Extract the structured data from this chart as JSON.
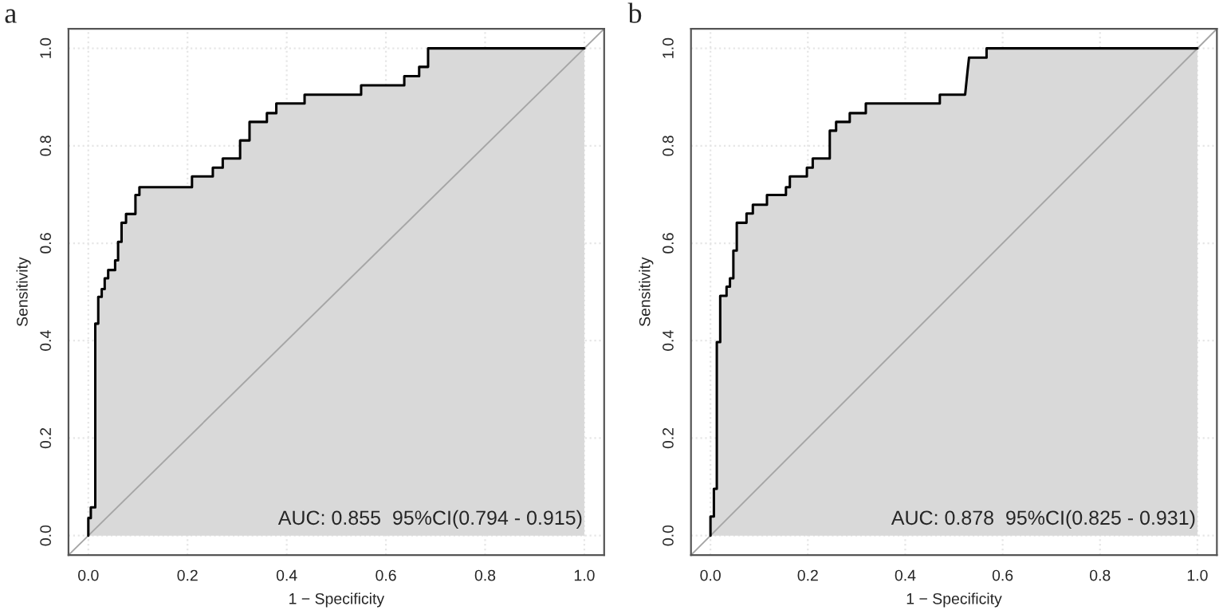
{
  "chart_data": [
    {
      "type": "line",
      "title": "a",
      "xlabel": "1 − Specificity",
      "ylabel": "Sensitivity",
      "xlim": [
        -0.04,
        1.04
      ],
      "ylim": [
        -0.04,
        1.04
      ],
      "xticks": [
        {
          "value": 0,
          "label": "0.0"
        },
        {
          "value": 0.2,
          "label": "0.2"
        },
        {
          "value": 0.4,
          "label": "0.4"
        },
        {
          "value": 0.6,
          "label": "0.6"
        },
        {
          "value": 0.8,
          "label": "0.8"
        },
        {
          "value": 1,
          "label": "1.0"
        }
      ],
      "yticks": [
        {
          "value": 0,
          "label": "0.0"
        },
        {
          "value": 0.2,
          "label": "0.2"
        },
        {
          "value": 0.4,
          "label": "0.4"
        },
        {
          "value": 0.6,
          "label": "0.6"
        },
        {
          "value": 0.8,
          "label": "0.8"
        },
        {
          "value": 1,
          "label": "1.0"
        }
      ],
      "grid": true,
      "annotations": [
        "AUC: 0.855  95%CI(0.794 - 0.915)"
      ],
      "series": [
        {
          "color": "#000000",
          "x": [
            0,
            0,
            0.005,
            0.005,
            0.014,
            0.014,
            0.02,
            0.02,
            0.027,
            0.027,
            0.033,
            0.033,
            0.04,
            0.04,
            0.054,
            0.054,
            0.06,
            0.06,
            0.067,
            0.067,
            0.076,
            0.076,
            0.095,
            0.095,
            0.103,
            0.103,
            0.209,
            0.209,
            0.251,
            0.251,
            0.271,
            0.271,
            0.306,
            0.306,
            0.325,
            0.325,
            0.36,
            0.36,
            0.379,
            0.379,
            0.436,
            0.436,
            0.55,
            0.55,
            0.637,
            0.637,
            0.667,
            0.667,
            0.685,
            0.685,
            1
          ],
          "values": [
            0,
            0.036,
            0.036,
            0.058,
            0.058,
            0.435,
            0.435,
            0.49,
            0.49,
            0.506,
            0.506,
            0.528,
            0.528,
            0.545,
            0.545,
            0.565,
            0.565,
            0.603,
            0.603,
            0.642,
            0.642,
            0.66,
            0.66,
            0.699,
            0.699,
            0.715,
            0.715,
            0.737,
            0.737,
            0.755,
            0.755,
            0.774,
            0.774,
            0.811,
            0.811,
            0.849,
            0.849,
            0.867,
            0.867,
            0.887,
            0.887,
            0.905,
            0.905,
            0.924,
            0.924,
            0.943,
            0.943,
            0.962,
            0.962,
            1,
            1
          ]
        },
        {
          "type": "line",
          "color": "#a6a6a6",
          "x": [
            -0.04,
            1.04
          ],
          "values": [
            -0.04,
            1.04
          ]
        }
      ]
    },
    {
      "type": "line",
      "title": "b",
      "xlabel": "1 − Specificity",
      "ylabel": "Sensitivity",
      "xlim": [
        -0.04,
        1.04
      ],
      "ylim": [
        -0.04,
        1.04
      ],
      "xticks": [
        {
          "value": 0,
          "label": "0.0"
        },
        {
          "value": 0.2,
          "label": "0.2"
        },
        {
          "value": 0.4,
          "label": "0.4"
        },
        {
          "value": 0.6,
          "label": "0.6"
        },
        {
          "value": 0.8,
          "label": "0.8"
        },
        {
          "value": 1,
          "label": "1.0"
        }
      ],
      "yticks": [
        {
          "value": 0,
          "label": "0.0"
        },
        {
          "value": 0.2,
          "label": "0.2"
        },
        {
          "value": 0.4,
          "label": "0.4"
        },
        {
          "value": 0.6,
          "label": "0.6"
        },
        {
          "value": 0.8,
          "label": "0.8"
        },
        {
          "value": 1,
          "label": "1.0"
        }
      ],
      "grid": true,
      "annotations": [
        "AUC: 0.878  95%CI(0.825 - 0.931)"
      ],
      "series": [
        {
          "color": "#000000",
          "x": [
            0,
            0,
            0.007,
            0.007,
            0.013,
            0.013,
            0.02,
            0.02,
            0.033,
            0.033,
            0.04,
            0.04,
            0.047,
            0.047,
            0.054,
            0.054,
            0.074,
            0.074,
            0.087,
            0.087,
            0.116,
            0.116,
            0.155,
            0.155,
            0.163,
            0.163,
            0.198,
            0.198,
            0.21,
            0.21,
            0.245,
            0.245,
            0.258,
            0.258,
            0.286,
            0.286,
            0.319,
            0.319,
            0.471,
            0.471,
            0.523,
            0.528,
            0.531,
            0.567,
            0.567,
            1
          ],
          "values": [
            0,
            0.039,
            0.039,
            0.096,
            0.096,
            0.397,
            0.397,
            0.492,
            0.492,
            0.511,
            0.511,
            0.528,
            0.528,
            0.585,
            0.585,
            0.642,
            0.642,
            0.661,
            0.661,
            0.679,
            0.679,
            0.699,
            0.699,
            0.715,
            0.715,
            0.737,
            0.737,
            0.755,
            0.755,
            0.774,
            0.774,
            0.831,
            0.831,
            0.849,
            0.849,
            0.867,
            0.867,
            0.887,
            0.887,
            0.905,
            0.905,
            0.954,
            0.981,
            0.981,
            1,
            1
          ]
        },
        {
          "type": "line",
          "color": "#a6a6a6",
          "x": [
            -0.04,
            1.04
          ],
          "values": [
            -0.04,
            1.04
          ]
        }
      ]
    }
  ]
}
